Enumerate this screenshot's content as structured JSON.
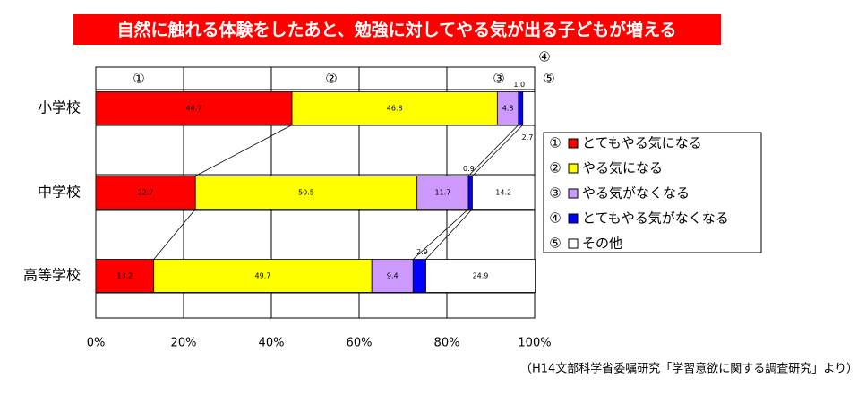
{
  "chart_data": {
    "type": "stacked-bar-horizontal",
    "title": "自然に触れる体験をしたあと、勉強に対してやる気が出る子どもが増える",
    "source": "（H14文部科学省委嘱研究「学習意欲に関する調査研究」より）",
    "categories": [
      "小学校",
      "中学校",
      "高等学校"
    ],
    "series": [
      {
        "symbol": "①",
        "name": "とてもやる気になる",
        "color": "#ff0000",
        "values": [
          44.7,
          22.7,
          13.2
        ]
      },
      {
        "symbol": "②",
        "name": "やる気になる",
        "color": "#ffff00",
        "values": [
          46.8,
          50.5,
          49.7
        ]
      },
      {
        "symbol": "③",
        "name": "やる気がなくなる",
        "color": "#cc99ff",
        "values": [
          4.8,
          11.7,
          9.4
        ]
      },
      {
        "symbol": "④",
        "name": "とてもやる気がなくなる",
        "color": "#0000ff",
        "values": [
          1.0,
          0.9,
          2.9
        ],
        "value_labels": [
          "1.0",
          "0.9",
          "2.9"
        ]
      },
      {
        "symbol": "⑤",
        "name": "その他",
        "color": "#ffffff",
        "values": [
          2.7,
          14.2,
          24.9
        ]
      }
    ],
    "xlim": [
      0,
      100
    ],
    "xticks": [
      {
        "value": 0,
        "label": "0%"
      },
      {
        "value": 20,
        "label": "20%"
      },
      {
        "value": 40,
        "label": "40%"
      },
      {
        "value": 60,
        "label": "60%"
      },
      {
        "value": 80,
        "label": "80%"
      },
      {
        "value": 100,
        "label": "100%"
      }
    ],
    "grid": true,
    "legend": "right"
  }
}
